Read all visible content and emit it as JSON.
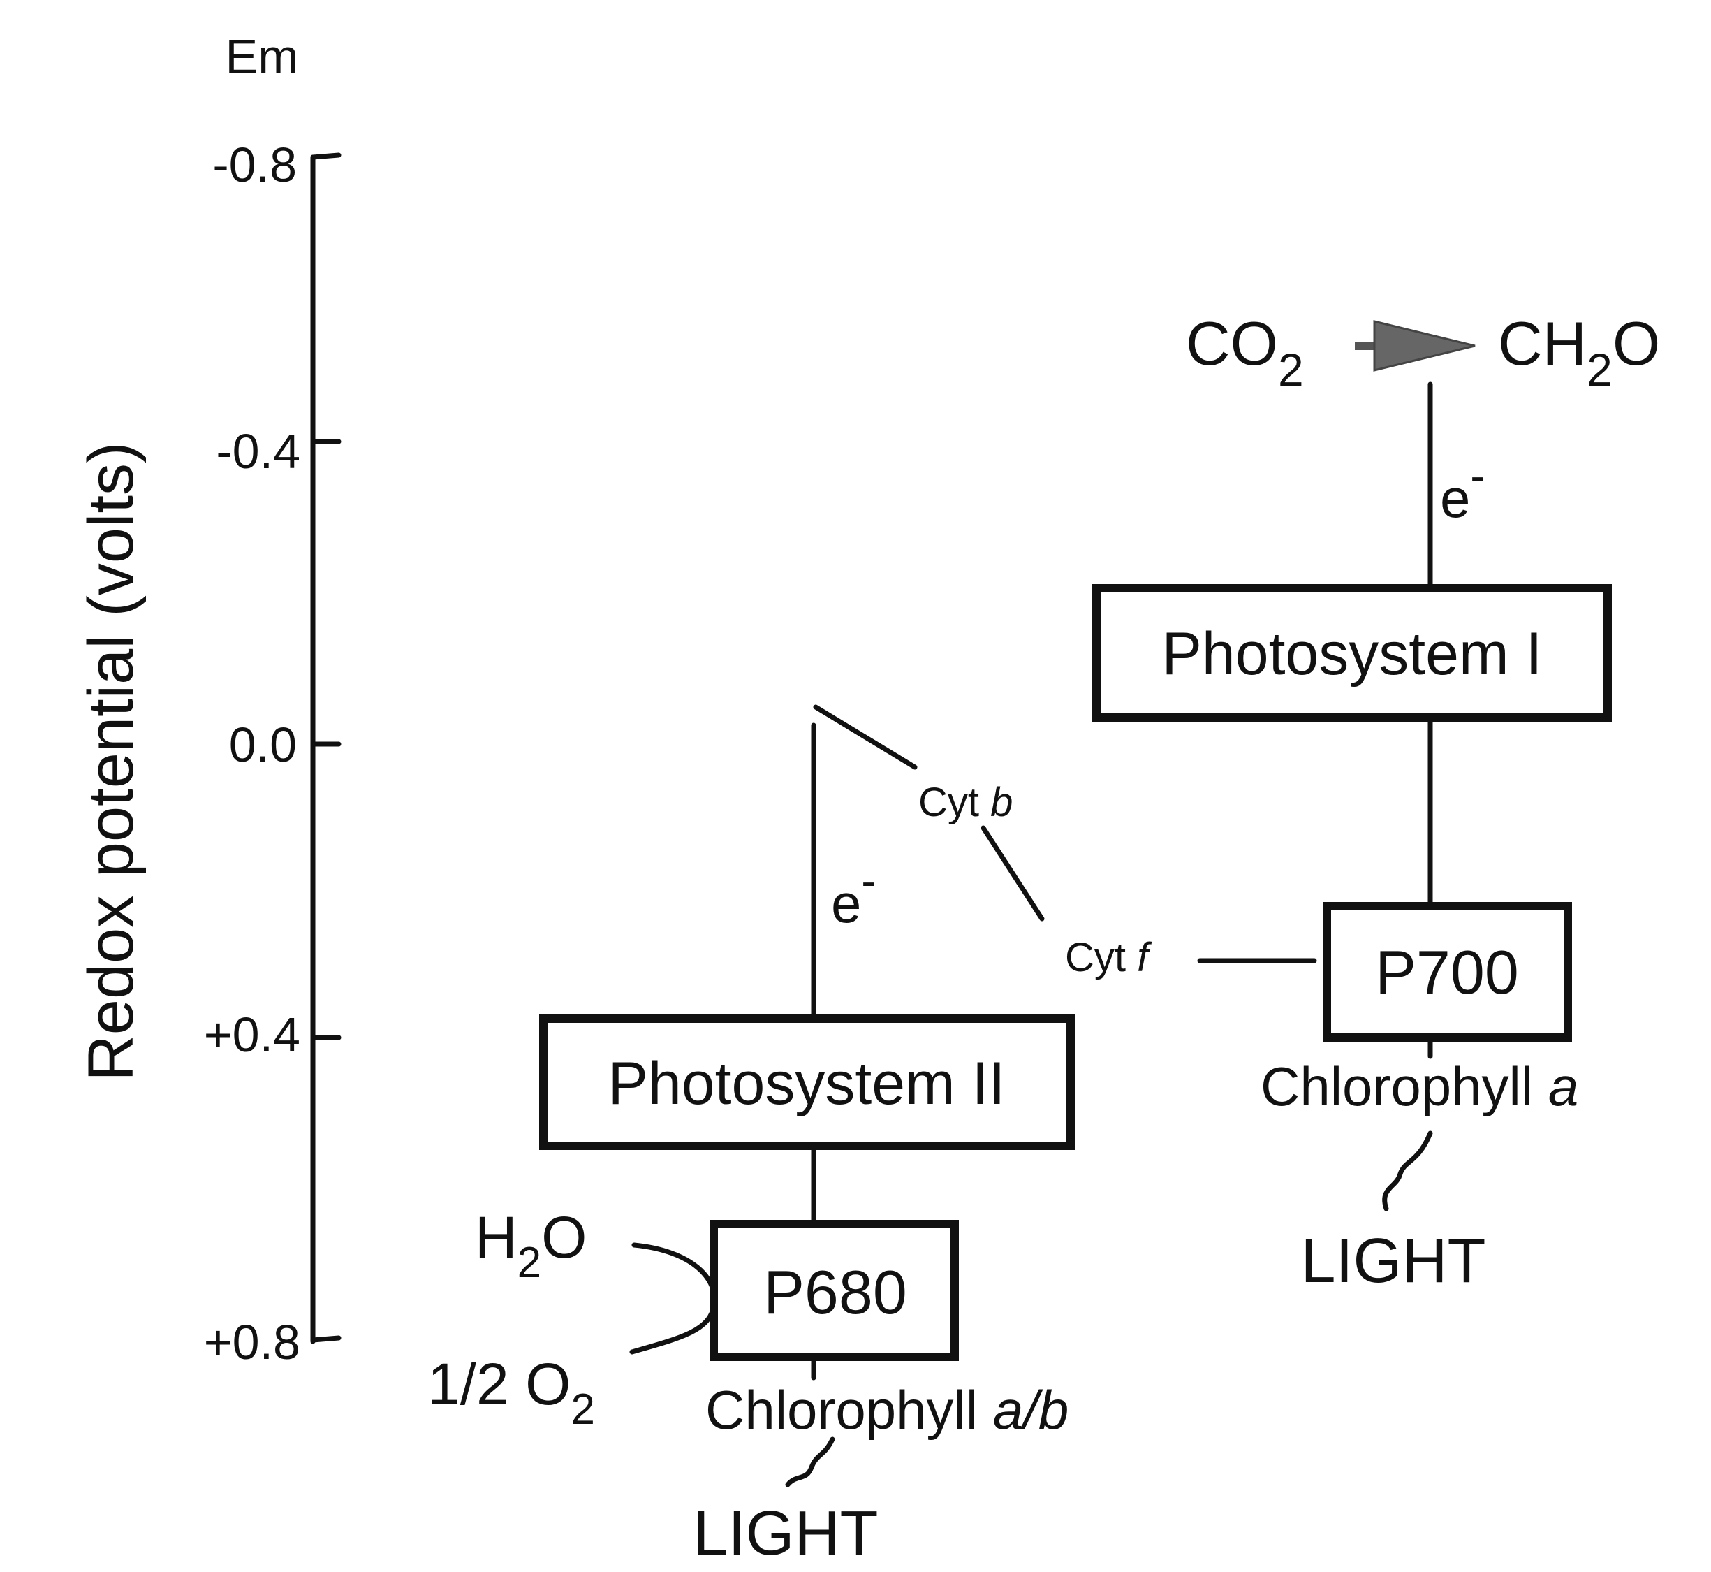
{
  "axis": {
    "unit_label": "Em",
    "title": "Redox potential (volts)",
    "ticks": [
      "-0.8",
      "-0.4",
      "0.0",
      "+0.4",
      "+0.8"
    ]
  },
  "psII": {
    "box_label": "Photosystem II",
    "reaction_center": "P680",
    "pigment": "Chlorophyll",
    "pigment_type": "a/b",
    "light": "LIGHT",
    "electron": "e",
    "electron_charge": "-"
  },
  "psI": {
    "box_label": "Photosystem I",
    "reaction_center": "P700",
    "pigment": "Chlorophyll",
    "pigment_type": "a",
    "light": "LIGHT",
    "electron": "e",
    "electron_charge": "-"
  },
  "water": {
    "reactant_h": "H",
    "reactant_sub": "2",
    "reactant_o": "O",
    "product_prefix": "1/2 O",
    "product_sub": "2"
  },
  "cytochromes": {
    "cyt_b_prefix": "Cyt",
    "cyt_b_letter": "b",
    "cyt_f_prefix": "Cyt",
    "cyt_f_letter": "f"
  },
  "carbon": {
    "reactant_prefix": "CO",
    "reactant_sub": "2",
    "product_prefix": "CH",
    "product_sub": "2",
    "product_suffix": "O"
  },
  "colors": {
    "ink": "#111111",
    "carbon_arrow": "#666666"
  }
}
